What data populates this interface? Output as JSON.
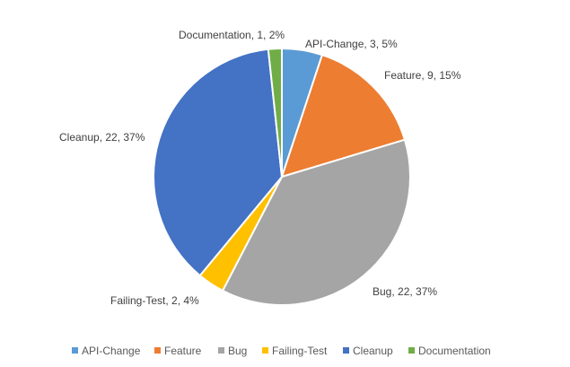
{
  "chart_data": {
    "type": "pie",
    "title": "",
    "legend_position": "bottom",
    "slices": [
      {
        "name": "API-Change",
        "value": 3,
        "percent": "5%",
        "color": "#5B9BD5",
        "label": "API-Change, 3, 5%"
      },
      {
        "name": "Feature",
        "value": 9,
        "percent": "15%",
        "color": "#ED7D31",
        "label": "Feature, 9, 15%"
      },
      {
        "name": "Bug",
        "value": 22,
        "percent": "37%",
        "color": "#A5A5A5",
        "label": "Bug, 22, 37%"
      },
      {
        "name": "Failing-Test",
        "value": 2,
        "percent": "4%",
        "color": "#FFC000",
        "label": "Failing-Test, 2, 4%"
      },
      {
        "name": "Cleanup",
        "value": 22,
        "percent": "37%",
        "color": "#4472C4",
        "label": "Cleanup, 22, 37%"
      },
      {
        "name": "Documentation",
        "value": 1,
        "percent": "2%",
        "color": "#70AD47",
        "label": "Documentation, 1, 2%"
      }
    ]
  }
}
